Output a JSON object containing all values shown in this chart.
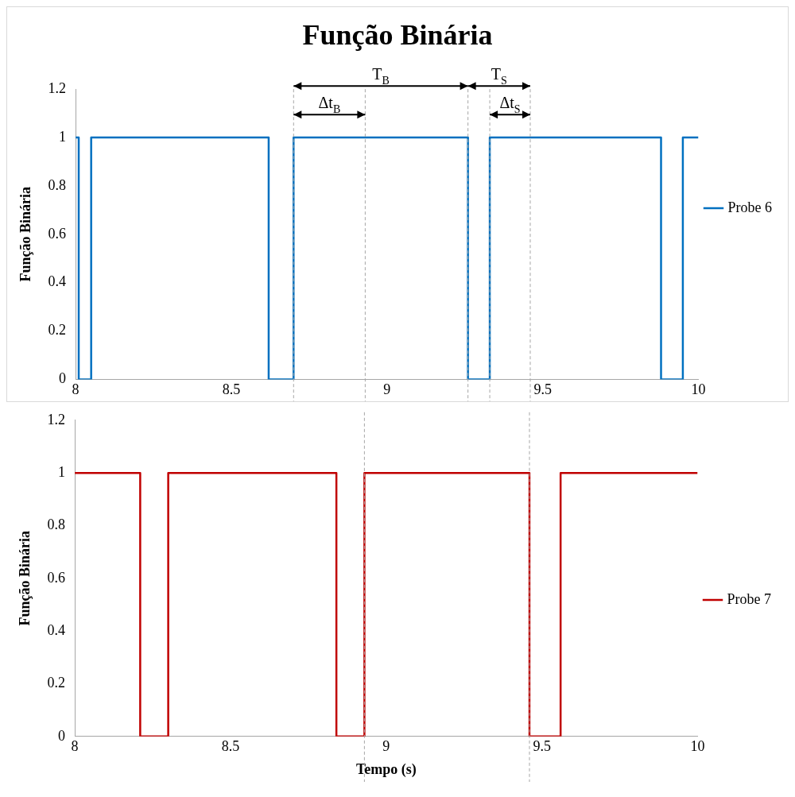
{
  "chart_data": [
    {
      "type": "line",
      "title": "Função Binária",
      "ylabel": "Função Binária",
      "xlim": [
        8,
        10
      ],
      "xticks": [
        8,
        8.5,
        9,
        9.5,
        10
      ],
      "ylim": [
        0,
        1.2
      ],
      "yticks": [
        0,
        0.2,
        0.4,
        0.6,
        0.8,
        1,
        1.2
      ],
      "grid": false,
      "legend": "right",
      "marker": "none",
      "line_style": "solid",
      "series": [
        {
          "name": "Probe 6",
          "color": "#0070c0",
          "x": [
            8,
            8.01,
            8.01,
            8.05,
            8.05,
            8.62,
            8.62,
            8.7,
            8.7,
            9.26,
            9.26,
            9.33,
            9.33,
            9.88,
            9.88,
            9.95,
            9.95,
            10
          ],
          "values": [
            1,
            1,
            0,
            0,
            1,
            1,
            0,
            0,
            1,
            1,
            0,
            0,
            1,
            1,
            0,
            0,
            1,
            1
          ]
        }
      ],
      "annotations": [
        "T$_{B}$",
        "T$_{S}$",
        "Δt$_{B}$",
        "Δt$_{S}$"
      ],
      "ref_lines": [
        {
          "axis": "x",
          "value": 8.7,
          "color": "#a6a6a6",
          "line_style": "dashed"
        },
        {
          "axis": "x",
          "value": 9.26,
          "color": "#a6a6a6",
          "line_style": "dashed"
        },
        {
          "axis": "x",
          "value": 9.33,
          "color": "#a6a6a6",
          "line_style": "dashed"
        },
        {
          "axis": "x",
          "value": 8.93,
          "color": "#a6a6a6",
          "line_style": "dashed"
        },
        {
          "axis": "x",
          "value": 9.46,
          "color": "#a6a6a6",
          "line_style": "dashed"
        }
      ]
    },
    {
      "type": "line",
      "ylabel": "Função Binária",
      "xlabel": "Tempo (s)",
      "xlim": [
        8,
        10
      ],
      "xticks": [
        8,
        8.5,
        9,
        9.5,
        10
      ],
      "ylim": [
        0,
        1.2
      ],
      "yticks": [
        0,
        0.2,
        0.4,
        0.6,
        0.8,
        1,
        1.2
      ],
      "grid": false,
      "legend": "right",
      "marker": "none",
      "line_style": "solid",
      "series": [
        {
          "name": "Probe 7",
          "color": "#c00000",
          "x": [
            8,
            8.21,
            8.21,
            8.3,
            8.3,
            8.84,
            8.84,
            8.93,
            8.93,
            9.46,
            9.46,
            9.56,
            9.56,
            10
          ],
          "values": [
            1,
            1,
            0,
            0,
            1,
            1,
            0,
            0,
            1,
            1,
            0,
            0,
            1,
            1
          ]
        }
      ],
      "ref_lines": [
        {
          "axis": "x",
          "value": 8.93,
          "color": "#a6a6a6",
          "line_style": "dashed"
        },
        {
          "axis": "x",
          "value": 9.46,
          "color": "#a6a6a6",
          "line_style": "dashed"
        }
      ]
    }
  ]
}
